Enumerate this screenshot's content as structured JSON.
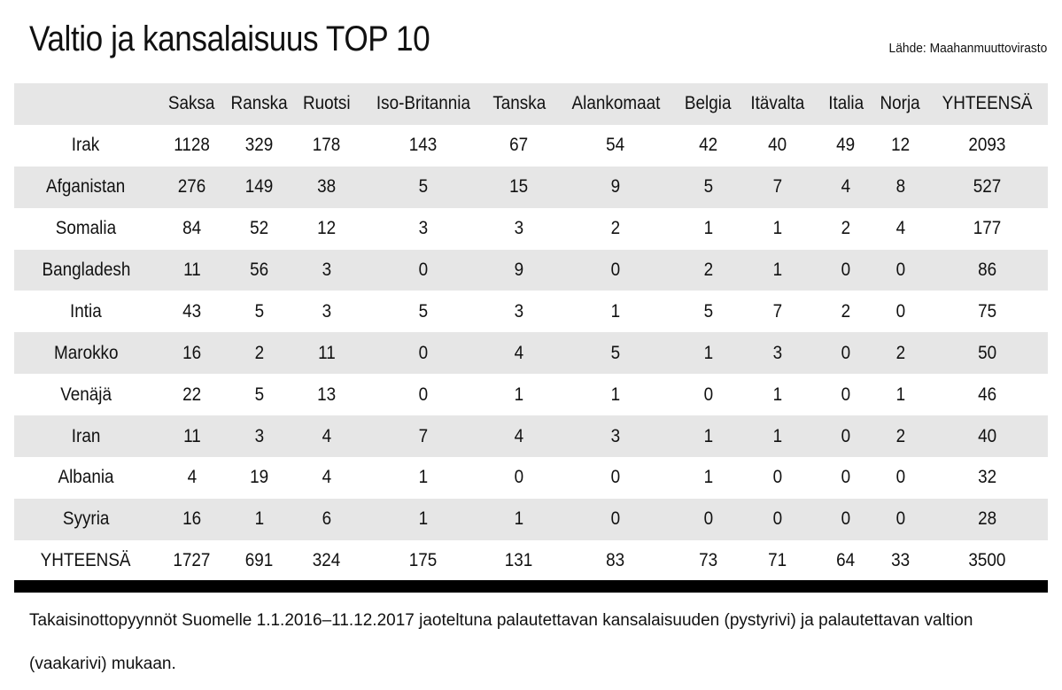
{
  "title": "Valtio ja kansalaisuus TOP 10",
  "source": "Lähde: Maahanmuuttovirasto",
  "chart_data": {
    "type": "table",
    "columns": [
      "",
      "Saksa",
      "Ranska",
      "Ruotsi",
      "Iso-Britannia",
      "Tanska",
      "Alankomaat",
      "Belgia",
      "Itävalta",
      "Italia",
      "Norja",
      "YHTEENSÄ"
    ],
    "rows": [
      {
        "label": "Irak",
        "values": [
          1128,
          329,
          178,
          143,
          67,
          54,
          42,
          40,
          49,
          12,
          2093
        ]
      },
      {
        "label": "Afganistan",
        "values": [
          276,
          149,
          38,
          5,
          15,
          9,
          5,
          7,
          4,
          8,
          527
        ]
      },
      {
        "label": "Somalia",
        "values": [
          84,
          52,
          12,
          3,
          3,
          2,
          1,
          1,
          2,
          4,
          177
        ]
      },
      {
        "label": "Bangladesh",
        "values": [
          11,
          56,
          3,
          0,
          9,
          0,
          2,
          1,
          0,
          0,
          86
        ]
      },
      {
        "label": "Intia",
        "values": [
          43,
          5,
          3,
          5,
          3,
          1,
          5,
          7,
          2,
          0,
          75
        ]
      },
      {
        "label": "Marokko",
        "values": [
          16,
          2,
          11,
          0,
          4,
          5,
          1,
          3,
          0,
          2,
          50
        ]
      },
      {
        "label": "Venäjä",
        "values": [
          22,
          5,
          13,
          0,
          1,
          1,
          0,
          1,
          0,
          1,
          46
        ]
      },
      {
        "label": "Iran",
        "values": [
          11,
          3,
          4,
          7,
          4,
          3,
          1,
          1,
          0,
          2,
          40
        ]
      },
      {
        "label": "Albania",
        "values": [
          4,
          19,
          4,
          1,
          0,
          0,
          1,
          0,
          0,
          0,
          32
        ]
      },
      {
        "label": "Syyria",
        "values": [
          16,
          1,
          6,
          1,
          1,
          0,
          0,
          0,
          0,
          0,
          28
        ]
      },
      {
        "label": "YHTEENSÄ",
        "values": [
          1727,
          691,
          324,
          175,
          131,
          83,
          73,
          71,
          64,
          33,
          3500
        ]
      }
    ],
    "striped_fill": "#e6e6e6"
  },
  "footer": "Takaisinottopyynnöt Suomelle 1.1.2016–11.12.2017 jaoteltuna palautettavan kansalaisuuden (pystyrivi) ja palautettavan valtion (vaakarivi) mukaan."
}
